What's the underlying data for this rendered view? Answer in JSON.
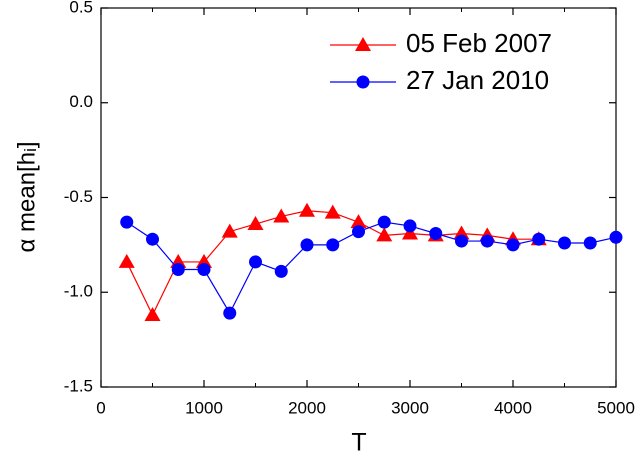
{
  "chart_data": {
    "type": "line",
    "xlabel": "T",
    "ylabel": "α mean[hᵢ]",
    "x": [
      250,
      500,
      750,
      1000,
      1250,
      1500,
      1750,
      2000,
      2250,
      2500,
      2750,
      3000,
      3250,
      3500,
      3750,
      4000,
      4250,
      4500,
      4750,
      5000
    ],
    "series": [
      {
        "name": "05 Feb 2007",
        "color": "#ff0000",
        "marker": "triangle",
        "values": [
          -0.84,
          -1.12,
          -0.84,
          -0.84,
          -0.68,
          -0.64,
          -0.6,
          -0.57,
          -0.58,
          -0.63,
          -0.7,
          -0.69,
          -0.7,
          -0.69,
          -0.7,
          -0.72,
          -0.72,
          null,
          null,
          null
        ]
      },
      {
        "name": "27 Jan 2010",
        "color": "#0000ff",
        "marker": "circle",
        "values": [
          -0.63,
          -0.72,
          -0.88,
          -0.88,
          -1.11,
          -0.84,
          -0.89,
          -0.75,
          -0.75,
          -0.68,
          -0.63,
          -0.65,
          -0.69,
          -0.73,
          -0.73,
          -0.75,
          -0.72,
          -0.74,
          -0.74,
          -0.71
        ]
      }
    ],
    "xlim": [
      0,
      5000
    ],
    "xticks": [
      0,
      1000,
      2000,
      3000,
      4000,
      5000
    ],
    "xminorticks": [
      500,
      1500,
      2500,
      3500,
      4500
    ],
    "ylim": [
      -1.5,
      0.5
    ],
    "yticks": [
      {
        "value": -1.5,
        "label": "-1.5"
      },
      {
        "value": -1,
        "label": "-1.0"
      },
      -0.5,
      {
        "value": 0,
        "label": "0.0"
      },
      0.5
    ],
    "legend": "upper right"
  }
}
